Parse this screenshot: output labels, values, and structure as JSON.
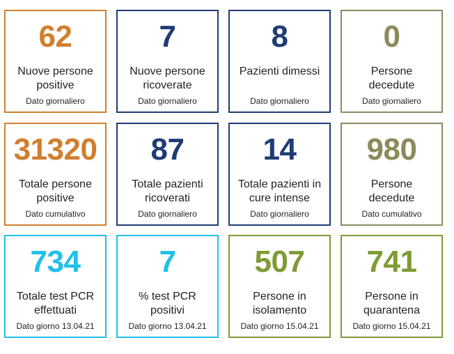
{
  "colors": {
    "orange": "#d07f2e",
    "navy": "#1f3c74",
    "olive": "#8c8a5c",
    "cyan": "#1fc1ea",
    "green": "#7f9b34"
  },
  "cards": [
    {
      "value": "62",
      "label_line1": "Nuove persone",
      "label_line2": "positive",
      "note": "Dato giornaliero",
      "color": "orange"
    },
    {
      "value": "7",
      "label_line1": "Nuove persone",
      "label_line2": "ricoverate",
      "note": "Dato giornaliero",
      "color": "navy"
    },
    {
      "value": "8",
      "label_line1": "Pazienti dimessi",
      "label_line2": "",
      "note": "Dato giornaliero",
      "color": "navy"
    },
    {
      "value": "0",
      "label_line1": "Persone",
      "label_line2": "decedute",
      "note": "Dato giornaliero",
      "color": "olive"
    },
    {
      "value": "31320",
      "label_line1": "Totale persone",
      "label_line2": "positive",
      "note": "Dato cumulativo",
      "color": "orange"
    },
    {
      "value": "87",
      "label_line1": "Totale pazienti",
      "label_line2": "ricoverati",
      "note": "Dato giornaliero",
      "color": "navy"
    },
    {
      "value": "14",
      "label_line1": "Totale pazienti in",
      "label_line2": "cure intense",
      "note": "Dato giornaliero",
      "color": "navy"
    },
    {
      "value": "980",
      "label_line1": "Persone",
      "label_line2": "decedute",
      "note": "Dato cumulativo",
      "color": "olive"
    },
    {
      "value": "734",
      "label_line1": "Totale test PCR",
      "label_line2": "effettuati",
      "note": "Dato giorno 13.04.21",
      "color": "cyan"
    },
    {
      "value": "7",
      "label_line1": "% test PCR",
      "label_line2": "positivi",
      "note": "Dato giorno 13.04.21",
      "color": "cyan"
    },
    {
      "value": "507",
      "label_line1": "Persone in",
      "label_line2": "isolamento",
      "note": "Dato giorno 15.04.21",
      "color": "green"
    },
    {
      "value": "741",
      "label_line1": "Persone in",
      "label_line2": "quarantena",
      "note": "Dato giorno 15.04.21",
      "color": "green"
    }
  ]
}
